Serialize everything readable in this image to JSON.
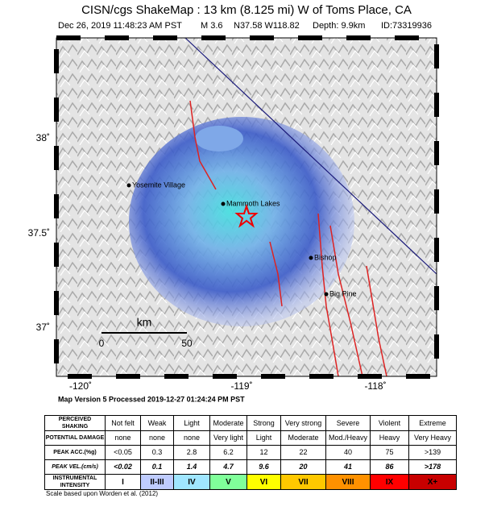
{
  "header": {
    "title": "CISN/cgs ShakeMap : 13 km (8.125 mi) W of Toms Place, CA",
    "date": "Dec 26, 2019 11:48:23 AM PST",
    "magnitude": "M 3.6",
    "location": "N37.58 W118.82",
    "depth": "Depth: 9.9km",
    "id": "ID:73319936"
  },
  "map": {
    "lat_labels": [
      "38˚",
      "37.5˚",
      "37˚"
    ],
    "lon_labels": [
      "-120˚",
      "-119˚",
      "-118˚"
    ],
    "places": [
      "Yosemite Village",
      "Mammoth Lakes",
      "Bishop",
      "Big Pine"
    ],
    "scale_bar": {
      "unit": "km",
      "start": "0",
      "end": "50"
    }
  },
  "version": "Map Version 5 Processed 2019-12-27 01:24:24 PM PST",
  "table": {
    "rows": [
      [
        "PERCEIVED SHAKING",
        "Not felt",
        "Weak",
        "Light",
        "Moderate",
        "Strong",
        "Very strong",
        "Severe",
        "Violent",
        "Extreme"
      ],
      [
        "POTENTIAL DAMAGE",
        "none",
        "none",
        "none",
        "Very light",
        "Light",
        "Moderate",
        "Mod./Heavy",
        "Heavy",
        "Very Heavy"
      ],
      [
        "PEAK ACC.(%g)",
        "<0.05",
        "0.3",
        "2.8",
        "6.2",
        "12",
        "22",
        "40",
        "75",
        ">139"
      ],
      [
        "PEAK VEL.(cm/s)",
        "<0.02",
        "0.1",
        "1.4",
        "4.7",
        "9.6",
        "20",
        "41",
        "86",
        ">178"
      ],
      [
        "INSTRUMENTAL INTENSITY",
        "I",
        "II-III",
        "IV",
        "V",
        "VI",
        "VII",
        "VIII",
        "IX",
        "X+"
      ]
    ],
    "intensity_colors": [
      "#ffffff",
      "#bfccff",
      "#a0e6ff",
      "#80ff9a",
      "#ffff00",
      "#ffc800",
      "#ff9100",
      "#ff0000",
      "#c80000"
    ]
  },
  "note": "Scale based upon Worden et al. (2012)"
}
